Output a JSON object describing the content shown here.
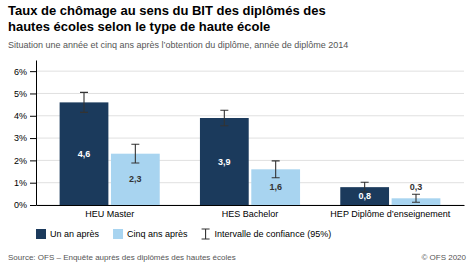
{
  "chart_data": {
    "type": "bar",
    "title": "Taux de chômage au sens du BIT des diplômés des\nhautes écoles selon le type de haute école",
    "subtitle": "Situation une année et cinq ans après l’obtention du diplôme, année de diplôme 2014",
    "categories": [
      "HEU Master",
      "HES Bachelor",
      "HEP Diplôme d’enseignement"
    ],
    "series": [
      {
        "name": "Un an après",
        "color": "#1b3a5c",
        "values": [
          4.6,
          3.9,
          0.8
        ],
        "errors": [
          0.45,
          0.35,
          0.22
        ],
        "value_labels": [
          "4,6",
          "3,9",
          "0,8"
        ]
      },
      {
        "name": "Cinq ans après",
        "color": "#a8d4f0",
        "values": [
          2.3,
          1.6,
          0.3
        ],
        "errors": [
          0.42,
          0.38,
          0.18
        ],
        "value_labels": [
          "2,3",
          "1,6",
          "0,3"
        ]
      }
    ],
    "error_label": "Intervalle de confiance (95%)",
    "ylim": [
      0,
      6.5
    ],
    "yticks": [
      {
        "value": 0,
        "label": "0%"
      },
      {
        "value": 1,
        "label": "1%"
      },
      {
        "value": 2,
        "label": "2%"
      },
      {
        "value": 3,
        "label": "3%"
      },
      {
        "value": 4,
        "label": "4%"
      },
      {
        "value": 5,
        "label": "5%"
      },
      {
        "value": 6,
        "label": "6%"
      }
    ],
    "grid": true,
    "data_labels": true,
    "legend": "bottom",
    "source": "Source: OFS – Enquête auprès des diplômés des hautes écoles",
    "copyright": "© OFS 2020"
  }
}
